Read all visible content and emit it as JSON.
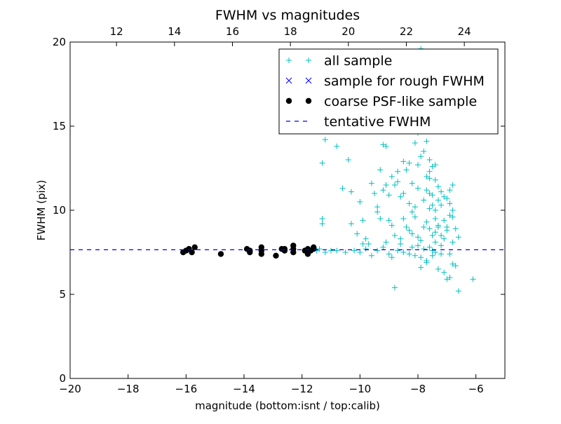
{
  "chart_data": {
    "type": "scatter",
    "title": "FWHM vs magnitudes",
    "xlabel": "magnitude (bottom:isnt / top:calib)",
    "ylabel": "FWHM (pix)",
    "xlim": [
      -20,
      -5
    ],
    "ylim": [
      0,
      20
    ],
    "top_xlim": [
      10.4,
      25.4
    ],
    "x_ticks": [
      "−20",
      "−18",
      "−16",
      "−14",
      "−12",
      "−10",
      "−8",
      "−6"
    ],
    "y_ticks": [
      "0",
      "5",
      "10",
      "15",
      "20"
    ],
    "top_ticks": [
      "12",
      "14",
      "16",
      "18",
      "20",
      "22",
      "24"
    ],
    "legend_position": "top-right",
    "series": [
      {
        "name": "all sample",
        "marker": "plus",
        "color": "#00bfbf",
        "points": [
          [
            -11.5,
            7.6
          ],
          [
            -11.4,
            7.7
          ],
          [
            -11.2,
            7.5
          ],
          [
            -11.0,
            7.6
          ],
          [
            -10.8,
            7.6
          ],
          [
            -10.5,
            7.5
          ],
          [
            -10.2,
            7.6
          ],
          [
            -10.0,
            7.5
          ],
          [
            -9.8,
            7.7
          ],
          [
            -9.6,
            7.3
          ],
          [
            -9.4,
            7.6
          ],
          [
            -9.2,
            7.8
          ],
          [
            -9.0,
            7.4
          ],
          [
            -8.9,
            7.2
          ],
          [
            -8.7,
            7.6
          ],
          [
            -8.5,
            7.5
          ],
          [
            -8.3,
            7.4
          ],
          [
            -8.1,
            7.3
          ],
          [
            -7.9,
            7.2
          ],
          [
            -7.7,
            7.0
          ],
          [
            -7.5,
            7.3
          ],
          [
            -7.4,
            7.5
          ],
          [
            -7.2,
            7.4
          ],
          [
            -8.0,
            7.9
          ],
          [
            -7.8,
            7.7
          ],
          [
            -8.6,
            8.0
          ],
          [
            -9.1,
            8.1
          ],
          [
            -7.6,
            7.8
          ],
          [
            -7.3,
            6.5
          ],
          [
            -7.1,
            6.3
          ],
          [
            -6.9,
            6.0
          ],
          [
            -7.0,
            5.9
          ],
          [
            -6.8,
            6.8
          ],
          [
            -6.7,
            6.7
          ],
          [
            -6.6,
            5.2
          ],
          [
            -6.1,
            5.9
          ],
          [
            -8.8,
            5.4
          ],
          [
            -11.3,
            9.5
          ],
          [
            -11.3,
            9.2
          ],
          [
            -11.3,
            12.8
          ],
          [
            -11.2,
            14.2
          ],
          [
            -10.8,
            13.8
          ],
          [
            -10.6,
            11.3
          ],
          [
            -10.4,
            13.0
          ],
          [
            -10.3,
            11.1
          ],
          [
            -10.0,
            10.5
          ],
          [
            -9.9,
            9.4
          ],
          [
            -9.8,
            8.3
          ],
          [
            -9.7,
            8.0
          ],
          [
            -9.6,
            11.6
          ],
          [
            -9.5,
            11.0
          ],
          [
            -9.4,
            10.2
          ],
          [
            -9.3,
            9.5
          ],
          [
            -9.2,
            11.2
          ],
          [
            -9.1,
            11.5
          ],
          [
            -9.0,
            10.9
          ],
          [
            -9.3,
            12.4
          ],
          [
            -9.2,
            13.9
          ],
          [
            -9.1,
            13.8
          ],
          [
            -8.9,
            12.0
          ],
          [
            -8.8,
            11.5
          ],
          [
            -8.7,
            11.7
          ],
          [
            -8.6,
            10.8
          ],
          [
            -8.5,
            9.5
          ],
          [
            -8.4,
            12.4
          ],
          [
            -8.3,
            12.8
          ],
          [
            -8.2,
            11.6
          ],
          [
            -8.1,
            10.2
          ],
          [
            -8.0,
            12.7
          ],
          [
            -7.9,
            13.2
          ],
          [
            -7.8,
            13.5
          ],
          [
            -7.7,
            12.0
          ],
          [
            -7.6,
            11.0
          ],
          [
            -7.5,
            10.3
          ],
          [
            -7.4,
            9.5
          ],
          [
            -7.3,
            9.0
          ],
          [
            -7.2,
            8.5
          ],
          [
            -7.1,
            8.3
          ],
          [
            -8.1,
            14.0
          ],
          [
            -8.0,
            14.6
          ],
          [
            -7.9,
            14.7
          ],
          [
            -7.8,
            15.0
          ],
          [
            -7.9,
            16.5
          ],
          [
            -8.0,
            17.6
          ],
          [
            -7.9,
            19.6
          ],
          [
            -7.8,
            19.2
          ],
          [
            -7.7,
            14.1
          ],
          [
            -7.6,
            13.0
          ],
          [
            -7.5,
            12.6
          ],
          [
            -7.4,
            11.8
          ],
          [
            -7.3,
            10.6
          ],
          [
            -7.2,
            10.3
          ],
          [
            -7.1,
            9.4
          ],
          [
            -7.0,
            9.0
          ],
          [
            -7.0,
            8.8
          ],
          [
            -6.9,
            9.7
          ],
          [
            -6.8,
            10.0
          ],
          [
            -6.9,
            10.4
          ],
          [
            -6.8,
            9.6
          ],
          [
            -6.7,
            8.9
          ],
          [
            -6.6,
            8.4
          ],
          [
            -6.8,
            8.1
          ],
          [
            -6.9,
            7.4
          ],
          [
            -7.2,
            7.9
          ],
          [
            -8.4,
            9.0
          ],
          [
            -8.3,
            8.8
          ],
          [
            -8.2,
            8.6
          ],
          [
            -8.6,
            8.3
          ],
          [
            -8.8,
            8.5
          ],
          [
            -9.0,
            9.4
          ],
          [
            -8.2,
            9.9
          ],
          [
            -7.6,
            10.1
          ],
          [
            -7.7,
            9.3
          ],
          [
            -7.6,
            8.9
          ],
          [
            -7.5,
            8.5
          ],
          [
            -7.4,
            8.7
          ],
          [
            -7.3,
            9.1
          ],
          [
            -7.4,
            8.1
          ],
          [
            -7.5,
            7.6
          ],
          [
            -7.7,
            6.9
          ],
          [
            -7.9,
            6.6
          ],
          [
            -8.2,
            7.8
          ],
          [
            -9.4,
            9.9
          ],
          [
            -10.3,
            9.2
          ],
          [
            -10.1,
            8.6
          ],
          [
            -9.9,
            8.0
          ],
          [
            -7.5,
            10.9
          ],
          [
            -7.6,
            12.3
          ],
          [
            -7.4,
            12.7
          ],
          [
            -7.3,
            11.4
          ],
          [
            -7.2,
            11.1
          ],
          [
            -7.1,
            10.8
          ],
          [
            -7.0,
            10.7
          ],
          [
            -6.9,
            11.2
          ],
          [
            -6.8,
            11.5
          ],
          [
            -8.0,
            8.4
          ],
          [
            -7.9,
            8.2
          ],
          [
            -7.8,
            9.0
          ],
          [
            -8.1,
            9.6
          ],
          [
            -8.3,
            10.4
          ],
          [
            -8.5,
            11.0
          ],
          [
            -8.7,
            12.3
          ],
          [
            -8.5,
            12.9
          ],
          [
            -7.8,
            10.6
          ],
          [
            -7.7,
            11.2
          ],
          [
            -7.6,
            11.9
          ],
          [
            -7.4,
            10.0
          ],
          [
            -8.9,
            9.1
          ],
          [
            -8.0,
            11.3
          ],
          [
            -7.7,
            16.8
          ]
        ]
      },
      {
        "name": "sample for rough FWHM",
        "marker": "x",
        "color": "#0000ff",
        "points": []
      },
      {
        "name": "coarse PSF-like sample",
        "marker": "circle",
        "color": "#000000",
        "points": [
          [
            -16.1,
            7.5
          ],
          [
            -16.0,
            7.6
          ],
          [
            -15.9,
            7.7
          ],
          [
            -15.8,
            7.5
          ],
          [
            -15.7,
            7.8
          ],
          [
            -14.8,
            7.4
          ],
          [
            -13.9,
            7.7
          ],
          [
            -13.8,
            7.6
          ],
          [
            -13.8,
            7.5
          ],
          [
            -13.4,
            7.8
          ],
          [
            -13.4,
            7.4
          ],
          [
            -13.4,
            7.6
          ],
          [
            -12.9,
            7.3
          ],
          [
            -12.7,
            7.7
          ],
          [
            -12.6,
            7.7
          ],
          [
            -12.6,
            7.6
          ],
          [
            -12.3,
            7.9
          ],
          [
            -12.3,
            7.5
          ],
          [
            -12.3,
            7.7
          ],
          [
            -11.9,
            7.6
          ],
          [
            -11.8,
            7.7
          ],
          [
            -11.8,
            7.4
          ],
          [
            -11.7,
            7.6
          ],
          [
            -11.6,
            7.7
          ],
          [
            -11.6,
            7.8
          ]
        ]
      },
      {
        "name": "tentative FWHM",
        "marker": "dashed-line",
        "color": "#0000ff",
        "y": 7.65
      }
    ]
  }
}
